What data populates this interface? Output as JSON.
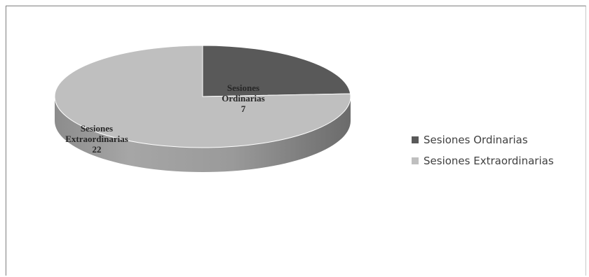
{
  "chart_data": {
    "type": "pie",
    "slices": [
      {
        "name": "Sesiones Ordinarias",
        "value": 7,
        "label_lines": [
          "Sesiones",
          "Ordinarias",
          "7"
        ],
        "color": "#595959"
      },
      {
        "name": "Sesiones Extraordinarias",
        "value": 22,
        "label_lines": [
          "Sesiones",
          "Extraordinarias",
          "22"
        ],
        "color": "#bfbfbf"
      }
    ],
    "legend": {
      "placement": "right",
      "items": [
        "Sesiones Ordinarias",
        "Sesiones Extraordinarias"
      ]
    }
  }
}
